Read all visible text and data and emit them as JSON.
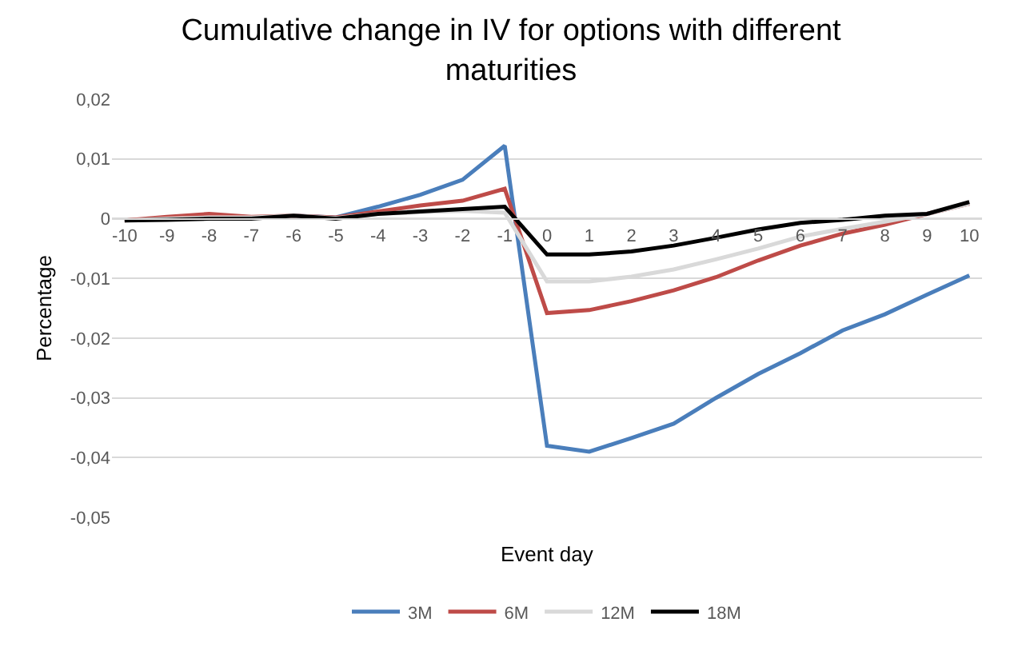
{
  "chart_data": {
    "type": "line",
    "title": "Cumulative change in IV for options with different maturities",
    "xlabel": "Event day",
    "ylabel": "Percentage",
    "categories": [
      "-10",
      "-9",
      "-8",
      "-7",
      "-6",
      "-5",
      "-4",
      "-3",
      "-2",
      "-1",
      "0",
      "1",
      "2",
      "3",
      "4",
      "5",
      "6",
      "7",
      "8",
      "9",
      "10"
    ],
    "series": [
      {
        "name": "3M",
        "color": "#4a7ebb",
        "values": [
          null,
          null,
          null,
          null,
          0.0005,
          0.0002,
          0.002,
          0.004,
          0.0065,
          0.0122,
          -0.038,
          -0.039,
          -0.0367,
          -0.0343,
          -0.03,
          -0.026,
          -0.0225,
          -0.0187,
          -0.016,
          -0.0127,
          -0.0095
        ]
      },
      {
        "name": "6M",
        "color": "#be4b48",
        "values": [
          -0.0003,
          0.0003,
          0.0008,
          0.0003,
          0.0005,
          0.0002,
          0.0012,
          0.0022,
          0.003,
          0.005,
          -0.0158,
          -0.0153,
          -0.0138,
          -0.012,
          -0.0098,
          -0.007,
          -0.0045,
          -0.0025,
          -0.001,
          0.0008,
          0.0025
        ]
      },
      {
        "name": "12M",
        "color": "#d9d9d9",
        "values": [
          -0.0003,
          0,
          0.0002,
          0.0002,
          0.0005,
          0.0001,
          0.0008,
          0.0011,
          0.0013,
          0.001,
          -0.0105,
          -0.0105,
          -0.0097,
          -0.0085,
          -0.0068,
          -0.005,
          -0.003,
          -0.0017,
          -0.0005,
          0.0008,
          0.0025
        ]
      },
      {
        "name": "18M",
        "color": "#000000",
        "values": [
          -0.0003,
          -0.0002,
          0,
          0,
          0.0005,
          0,
          0.0008,
          0.0012,
          0.0016,
          0.002,
          -0.006,
          -0.006,
          -0.0055,
          -0.0045,
          -0.0032,
          -0.0018,
          -0.0007,
          -0.0002,
          0.0005,
          0.0008,
          0.0028
        ]
      }
    ],
    "ylim": [
      -0.05,
      0.02
    ],
    "yticks": [
      {
        "value": -0.05,
        "label": "-0,05"
      },
      {
        "value": -0.04,
        "label": "-0,04"
      },
      {
        "value": -0.03,
        "label": "-0,03"
      },
      {
        "value": -0.02,
        "label": "-0,02"
      },
      {
        "value": -0.01,
        "label": "-0,01"
      },
      {
        "value": 0,
        "label": "0"
      },
      {
        "value": 0.01,
        "label": "0,01"
      },
      {
        "value": 0.02,
        "label": "0,02"
      }
    ],
    "grid": "y",
    "legend": "bottom",
    "marker": "none",
    "line_style": "solid"
  }
}
